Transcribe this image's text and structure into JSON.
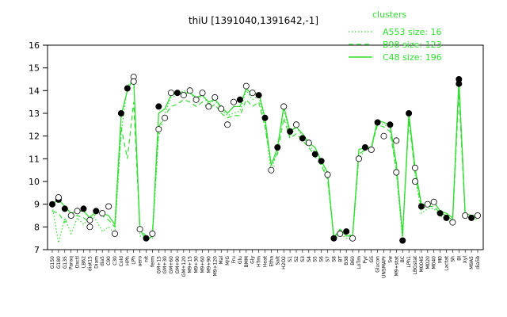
{
  "chart_data": {
    "type": "line",
    "title": "thiU [1391040,1391642,-1]",
    "xlabel": "",
    "ylabel": "",
    "ylim": [
      7,
      16
    ],
    "yticks": [
      7,
      8,
      9,
      10,
      11,
      12,
      13,
      14,
      15,
      16
    ],
    "grid": false,
    "legend": {
      "title": "clusters",
      "placement": "top-right",
      "entries": [
        {
          "label": "A553 size: 16",
          "style": "dotted"
        },
        {
          "label": "B98 size: 123",
          "style": "dashed"
        },
        {
          "label": "C48 size: 196",
          "style": "solid"
        }
      ]
    },
    "colors": {
      "series": "#33dd33",
      "marker_fill": "#ffffff",
      "marker_fill_dark": "#000000",
      "axis": "#000000"
    },
    "x_labels": [
      "G150",
      "G180",
      "G135",
      "Paraq",
      "Oxctl",
      "LB62",
      "diat15",
      "Diam",
      "dia5",
      "C90",
      "C30",
      "Cold",
      "HPh",
      "LPh",
      "aero",
      "nit",
      "ferm",
      "GM+15",
      "GM+30",
      "GM+60",
      "GM+90",
      "GM+120",
      "M9+15",
      "M9+30",
      "M9+60",
      "M9+90",
      "M9+120",
      "Mal",
      "M/G",
      "Fru",
      "Glu",
      "BMM",
      "Gly",
      "HTm",
      "Heat",
      "Etha",
      "Salt",
      "H2O2",
      "S1",
      "S2",
      "S3",
      "S4",
      "S5",
      "S6",
      "S7",
      "S8",
      "BT",
      "B38",
      "B60",
      "LoTm",
      "Pyr",
      "GS",
      "Glucon",
      "UNSMAPr",
      "Sw",
      "M9+stat",
      "BC",
      "LPh1",
      "LBGstat",
      "M0045",
      "M020",
      "M040",
      "M0",
      "Lactat",
      "Sh",
      "BI",
      "Xyl",
      "M9A5",
      "dia5b"
    ],
    "series": [
      {
        "style": "dotted",
        "values": [
          8.9,
          7.3,
          8.4,
          7.7,
          8.4,
          8.1,
          8.5,
          8.3,
          7.8,
          8.0,
          7.7,
          12.1,
          14.2,
          14.5,
          7.6,
          7.5,
          7.5,
          12.0,
          13.0,
          13.7,
          13.8,
          14.0,
          13.9,
          13.6,
          13.8,
          13.4,
          13.6,
          13.2,
          12.9,
          13.0,
          13.1,
          14.0,
          13.6,
          13.8,
          12.5,
          10.4,
          11.4,
          13.2,
          12.0,
          12.4,
          12.0,
          11.6,
          11.3,
          10.8,
          10.2,
          7.4,
          7.7,
          7.5,
          7.5,
          11.0,
          11.4,
          11.4,
          12.6,
          12.5,
          12.4,
          10.4,
          7.4,
          12.9,
          10.3,
          8.6,
          8.8,
          8.8,
          8.5,
          8.3,
          8.2,
          14.3,
          8.5,
          8.4,
          8.3
        ]
      },
      {
        "style": "dashed",
        "values": [
          8.7,
          8.6,
          8.2,
          8.5,
          8.5,
          8.4,
          8.2,
          8.6,
          8.5,
          8.3,
          8.0,
          12.4,
          11.0,
          13.5,
          7.9,
          7.6,
          7.7,
          12.4,
          12.9,
          13.3,
          13.4,
          13.6,
          13.5,
          13.3,
          13.5,
          13.2,
          13.4,
          13.0,
          12.8,
          12.9,
          12.9,
          13.6,
          13.3,
          13.5,
          12.4,
          10.8,
          11.2,
          12.8,
          11.9,
          12.1,
          11.8,
          11.5,
          11.1,
          10.7,
          10.1,
          7.6,
          7.8,
          7.7,
          7.6,
          11.2,
          11.4,
          11.5,
          12.5,
          12.4,
          12.2,
          10.5,
          7.7,
          12.7,
          10.4,
          8.8,
          8.9,
          8.9,
          8.6,
          8.5,
          8.3,
          13.9,
          8.5,
          8.4,
          8.4
        ]
      },
      {
        "style": "solid",
        "values": [
          9.0,
          9.2,
          8.9,
          8.6,
          8.7,
          8.7,
          8.4,
          8.7,
          8.6,
          8.5,
          8.1,
          12.9,
          14.0,
          14.6,
          7.9,
          7.4,
          7.6,
          13.0,
          13.2,
          13.8,
          13.9,
          13.9,
          13.9,
          13.7,
          13.8,
          13.5,
          13.6,
          13.3,
          13.0,
          13.3,
          13.3,
          14.1,
          13.8,
          13.9,
          12.8,
          10.7,
          11.5,
          13.3,
          12.2,
          12.4,
          12.1,
          11.7,
          11.5,
          10.9,
          10.4,
          7.5,
          7.9,
          7.6,
          7.6,
          11.4,
          11.5,
          11.5,
          12.7,
          12.6,
          12.5,
          10.8,
          7.6,
          13.0,
          10.6,
          9.0,
          9.0,
          9.1,
          8.7,
          8.6,
          8.4,
          14.5,
          8.6,
          8.5,
          8.5
        ]
      }
    ],
    "markers": [
      {
        "x": 0,
        "y": 9.0,
        "fill": "dark"
      },
      {
        "x": 1,
        "y": 9.2,
        "fill": "dark"
      },
      {
        "x": 1,
        "y": 9.3,
        "fill": "light"
      },
      {
        "x": 2,
        "y": 8.8,
        "fill": "dark"
      },
      {
        "x": 3,
        "y": 8.5,
        "fill": "light"
      },
      {
        "x": 4,
        "y": 8.7,
        "fill": "light"
      },
      {
        "x": 5,
        "y": 8.8,
        "fill": "dark"
      },
      {
        "x": 6,
        "y": 8.3,
        "fill": "light"
      },
      {
        "x": 6,
        "y": 8.0,
        "fill": "light"
      },
      {
        "x": 7,
        "y": 8.7,
        "fill": "dark"
      },
      {
        "x": 8,
        "y": 8.6,
        "fill": "light"
      },
      {
        "x": 9,
        "y": 8.9,
        "fill": "light"
      },
      {
        "x": 10,
        "y": 7.7,
        "fill": "light"
      },
      {
        "x": 11,
        "y": 13.0,
        "fill": "dark"
      },
      {
        "x": 12,
        "y": 14.1,
        "fill": "dark"
      },
      {
        "x": 13,
        "y": 14.6,
        "fill": "light"
      },
      {
        "x": 13,
        "y": 14.4,
        "fill": "light"
      },
      {
        "x": 14,
        "y": 7.9,
        "fill": "light"
      },
      {
        "x": 15,
        "y": 7.5,
        "fill": "dark"
      },
      {
        "x": 16,
        "y": 7.7,
        "fill": "light"
      },
      {
        "x": 17,
        "y": 13.3,
        "fill": "dark"
      },
      {
        "x": 17,
        "y": 12.3,
        "fill": "light"
      },
      {
        "x": 18,
        "y": 12.8,
        "fill": "light"
      },
      {
        "x": 19,
        "y": 13.9,
        "fill": "light"
      },
      {
        "x": 20,
        "y": 13.9,
        "fill": "dark"
      },
      {
        "x": 21,
        "y": 13.8,
        "fill": "light"
      },
      {
        "x": 22,
        "y": 14.0,
        "fill": "light"
      },
      {
        "x": 23,
        "y": 13.6,
        "fill": "light"
      },
      {
        "x": 24,
        "y": 13.9,
        "fill": "light"
      },
      {
        "x": 25,
        "y": 13.3,
        "fill": "light"
      },
      {
        "x": 26,
        "y": 13.7,
        "fill": "light"
      },
      {
        "x": 27,
        "y": 13.2,
        "fill": "light"
      },
      {
        "x": 28,
        "y": 12.5,
        "fill": "light"
      },
      {
        "x": 29,
        "y": 13.5,
        "fill": "light"
      },
      {
        "x": 30,
        "y": 13.6,
        "fill": "dark"
      },
      {
        "x": 31,
        "y": 14.2,
        "fill": "light"
      },
      {
        "x": 32,
        "y": 13.9,
        "fill": "light"
      },
      {
        "x": 33,
        "y": 13.8,
        "fill": "dark"
      },
      {
        "x": 34,
        "y": 12.8,
        "fill": "dark"
      },
      {
        "x": 35,
        "y": 10.5,
        "fill": "light"
      },
      {
        "x": 36,
        "y": 11.5,
        "fill": "dark"
      },
      {
        "x": 37,
        "y": 13.3,
        "fill": "light"
      },
      {
        "x": 38,
        "y": 12.2,
        "fill": "dark"
      },
      {
        "x": 39,
        "y": 12.5,
        "fill": "light"
      },
      {
        "x": 40,
        "y": 11.9,
        "fill": "dark"
      },
      {
        "x": 41,
        "y": 11.7,
        "fill": "light"
      },
      {
        "x": 42,
        "y": 11.2,
        "fill": "dark"
      },
      {
        "x": 43,
        "y": 10.9,
        "fill": "dark"
      },
      {
        "x": 44,
        "y": 10.3,
        "fill": "light"
      },
      {
        "x": 45,
        "y": 7.5,
        "fill": "dark"
      },
      {
        "x": 46,
        "y": 7.7,
        "fill": "light"
      },
      {
        "x": 47,
        "y": 7.8,
        "fill": "dark"
      },
      {
        "x": 48,
        "y": 7.5,
        "fill": "light"
      },
      {
        "x": 49,
        "y": 11.0,
        "fill": "light"
      },
      {
        "x": 50,
        "y": 11.5,
        "fill": "dark"
      },
      {
        "x": 51,
        "y": 11.4,
        "fill": "light"
      },
      {
        "x": 52,
        "y": 12.6,
        "fill": "dark"
      },
      {
        "x": 53,
        "y": 12.0,
        "fill": "light"
      },
      {
        "x": 54,
        "y": 12.5,
        "fill": "dark"
      },
      {
        "x": 55,
        "y": 10.4,
        "fill": "light"
      },
      {
        "x": 55,
        "y": 11.8,
        "fill": "light"
      },
      {
        "x": 56,
        "y": 7.4,
        "fill": "dark"
      },
      {
        "x": 57,
        "y": 13.0,
        "fill": "dark"
      },
      {
        "x": 58,
        "y": 10.6,
        "fill": "light"
      },
      {
        "x": 58,
        "y": 10.0,
        "fill": "light"
      },
      {
        "x": 59,
        "y": 8.9,
        "fill": "dark"
      },
      {
        "x": 60,
        "y": 9.0,
        "fill": "light"
      },
      {
        "x": 61,
        "y": 9.1,
        "fill": "light"
      },
      {
        "x": 62,
        "y": 8.6,
        "fill": "dark"
      },
      {
        "x": 63,
        "y": 8.4,
        "fill": "dark"
      },
      {
        "x": 64,
        "y": 8.2,
        "fill": "light"
      },
      {
        "x": 65,
        "y": 14.5,
        "fill": "dark"
      },
      {
        "x": 65,
        "y": 14.3,
        "fill": "dark"
      },
      {
        "x": 66,
        "y": 8.5,
        "fill": "light"
      },
      {
        "x": 67,
        "y": 8.4,
        "fill": "dark"
      },
      {
        "x": 68,
        "y": 8.5,
        "fill": "light"
      }
    ]
  }
}
